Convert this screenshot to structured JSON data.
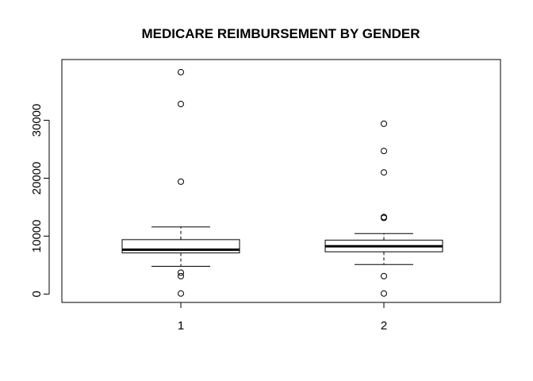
{
  "chart_data": {
    "type": "boxplot",
    "title": "MEDICARE REIMBURSEMENT BY GENDER",
    "xlabel": "",
    "ylabel": "",
    "categories": [
      "1",
      "2"
    ],
    "ylim": [
      -1500,
      40000
    ],
    "yticks": [
      0,
      10000,
      20000,
      30000
    ],
    "ytick_labels": [
      "0",
      "10000",
      "20000",
      "30000"
    ],
    "grid": false,
    "boxes": [
      {
        "category": "1",
        "whisker_low": 4800,
        "q1": 7100,
        "median": 7650,
        "q3": 9400,
        "whisker_high": 11600,
        "outliers": [
          38300,
          32800,
          19400,
          3700,
          3100,
          100
        ]
      },
      {
        "category": "2",
        "whisker_low": 5100,
        "q1": 7300,
        "median": 8250,
        "q3": 9300,
        "whisker_high": 10450,
        "outliers": [
          29400,
          24700,
          21000,
          13300,
          13150,
          3100,
          100
        ]
      }
    ],
    "colors": {
      "box_fill": "#ffffff",
      "stroke": "#000000"
    }
  }
}
